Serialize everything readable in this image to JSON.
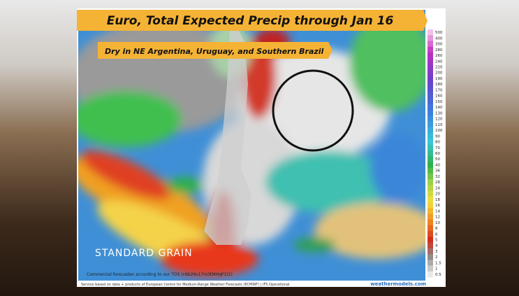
{
  "header": {
    "title": "Euro, Total Expected Precip through Jan 16",
    "subtitle": "Dry in NE Argentina, Uruguay, and Southern Brazil"
  },
  "legend": {
    "labels": [
      500,
      400,
      300,
      280,
      260,
      240,
      220,
      200,
      190,
      180,
      170,
      160,
      150,
      140,
      130,
      120,
      110,
      100,
      90,
      80,
      70,
      60,
      50,
      40,
      36,
      32,
      28,
      24,
      20,
      18,
      16,
      14,
      12,
      10,
      8,
      6,
      5,
      4,
      3,
      2,
      1.5,
      1,
      0.5
    ]
  },
  "watermark": "STANDARD GRAIN",
  "footer": {
    "notice": "Commercial forecaster according to our TOS (c6b29v17m3tMHqP1t1)",
    "source": "Service based on data + products of European Centre for Medium-Range Weather Forecasts (ECMWF) | IFS Operational",
    "site": "weathermodels.com"
  }
}
